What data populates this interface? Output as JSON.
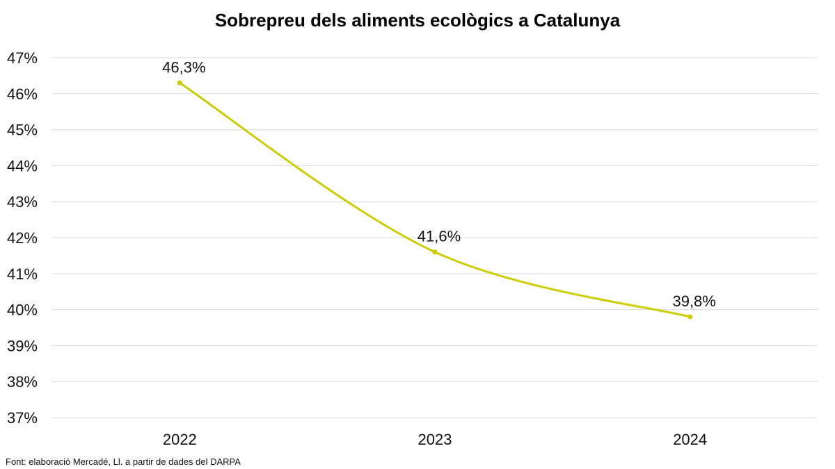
{
  "chart_data": {
    "type": "line",
    "title": "Sobrepreu dels aliments ecològics a Catalunya",
    "xlabel": "",
    "ylabel": "",
    "categories": [
      "2022",
      "2023",
      "2024"
    ],
    "series": [
      {
        "values": [
          46.3,
          41.6,
          39.8
        ],
        "data_labels": [
          "46,3%",
          "41,6%",
          "39,8%"
        ],
        "color": "#cccc00",
        "smooth": true
      }
    ],
    "ylim": [
      37,
      47
    ],
    "yticks": [
      37,
      38,
      39,
      40,
      41,
      42,
      43,
      44,
      45,
      46,
      47
    ],
    "ytick_labels": [
      "37%",
      "38%",
      "39%",
      "40%",
      "41%",
      "42%",
      "43%",
      "44%",
      "45%",
      "46%",
      "47%"
    ],
    "grid": true,
    "legend": "none",
    "source": "Font: elaboració Mercadé, Ll. a partir de dades del DARPA"
  }
}
